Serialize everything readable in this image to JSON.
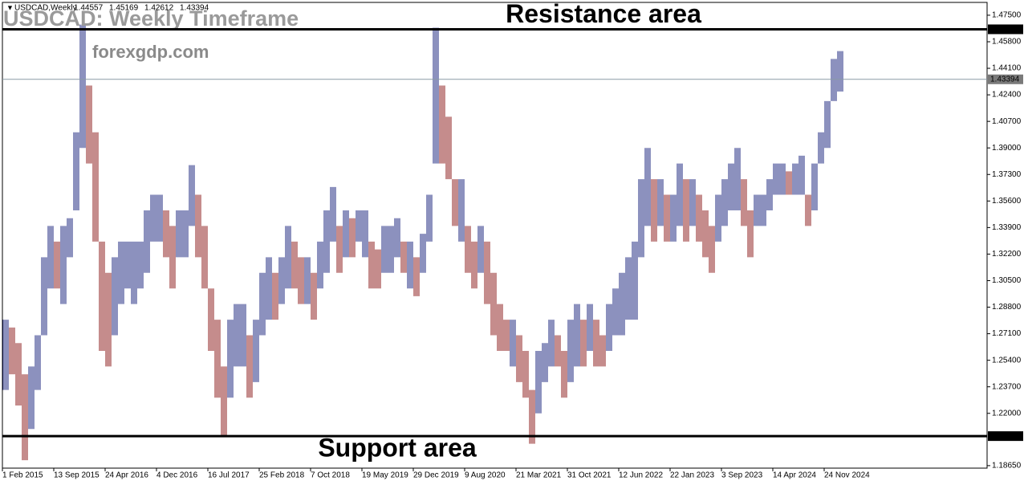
{
  "chart_data": {
    "type": "ohlc",
    "header": "USDCAD,Weekly",
    "header_values": [
      1.44557,
      1.45169,
      1.42612,
      1.43394
    ],
    "title": "USDCAD: Weekly Timeframe",
    "subtitle": "forexgdp.com",
    "up_color": "#1a237e",
    "down_color": "#8b1a1a",
    "categories": [
      "1 Feb 2015",
      null,
      null,
      null,
      null,
      null,
      null,
      null,
      "13 Sep 2015",
      null,
      null,
      null,
      null,
      null,
      null,
      null,
      "24 Apr 2016",
      null,
      null,
      null,
      null,
      null,
      null,
      null,
      "4 Dec 2016",
      null,
      null,
      null,
      null,
      null,
      null,
      null,
      "16 Jul 2017",
      null,
      null,
      null,
      null,
      null,
      null,
      null,
      "25 Feb 2018",
      null,
      null,
      null,
      null,
      null,
      null,
      null,
      "7 Oct 2018",
      null,
      null,
      null,
      null,
      null,
      null,
      null,
      "19 May 2019",
      null,
      null,
      null,
      null,
      null,
      null,
      null,
      "29 Dec 2019",
      null,
      null,
      null,
      null,
      null,
      null,
      null,
      "9 Aug 2020",
      null,
      null,
      null,
      null,
      null,
      null,
      null,
      "21 Mar 2021",
      null,
      null,
      null,
      null,
      null,
      null,
      null,
      "31 Oct 2021",
      null,
      null,
      null,
      null,
      null,
      null,
      null,
      "12 Jun 2022",
      null,
      null,
      null,
      null,
      null,
      null,
      null,
      "22 Jan 2023",
      null,
      null,
      null,
      null,
      null,
      null,
      null,
      "3 Sep 2023",
      null,
      null,
      null,
      null,
      null,
      null,
      null,
      "14 Apr 2024",
      null,
      null,
      null,
      null,
      null,
      null,
      null,
      "24 Nov 2024",
      null,
      null
    ],
    "high": [
      1.28,
      1.275,
      1.265,
      1.245,
      1.25,
      1.27,
      1.32,
      1.34,
      1.33,
      1.34,
      1.345,
      1.4,
      1.469,
      1.43,
      1.4,
      1.33,
      1.31,
      1.32,
      1.33,
      1.33,
      1.33,
      1.33,
      1.35,
      1.36,
      1.36,
      1.35,
      1.34,
      1.35,
      1.35,
      1.379,
      1.36,
      1.34,
      1.3,
      1.28,
      1.25,
      1.28,
      1.29,
      1.29,
      1.27,
      1.28,
      1.31,
      1.32,
      1.31,
      1.32,
      1.34,
      1.33,
      1.32,
      1.32,
      1.31,
      1.33,
      1.35,
      1.365,
      1.34,
      1.35,
      1.345,
      1.35,
      1.35,
      1.33,
      1.325,
      1.34,
      1.34,
      1.345,
      1.33,
      1.33,
      1.32,
      1.335,
      1.36,
      1.467,
      1.43,
      1.41,
      1.37,
      1.37,
      1.34,
      1.33,
      1.34,
      1.33,
      1.31,
      1.29,
      1.28,
      1.28,
      1.27,
      1.26,
      1.235,
      1.26,
      1.265,
      1.28,
      1.27,
      1.26,
      1.28,
      1.29,
      1.28,
      1.29,
      1.28,
      1.27,
      1.29,
      1.3,
      1.31,
      1.32,
      1.33,
      1.37,
      1.39,
      1.37,
      1.37,
      1.36,
      1.36,
      1.38,
      1.37,
      1.37,
      1.36,
      1.35,
      1.34,
      1.36,
      1.37,
      1.38,
      1.39,
      1.37,
      1.35,
      1.36,
      1.36,
      1.37,
      1.38,
      1.38,
      1.375,
      1.38,
      1.385,
      1.36,
      1.38,
      1.4,
      1.42,
      1.447,
      1.452
    ],
    "low": [
      1.235,
      1.245,
      1.225,
      1.19,
      1.21,
      1.235,
      1.27,
      1.3,
      1.3,
      1.29,
      1.32,
      1.35,
      1.39,
      1.38,
      1.33,
      1.26,
      1.25,
      1.27,
      1.29,
      1.3,
      1.29,
      1.3,
      1.31,
      1.33,
      1.33,
      1.32,
      1.3,
      1.32,
      1.32,
      1.34,
      1.32,
      1.3,
      1.26,
      1.23,
      1.206,
      1.23,
      1.25,
      1.25,
      1.23,
      1.24,
      1.27,
      1.28,
      1.28,
      1.29,
      1.3,
      1.3,
      1.29,
      1.29,
      1.28,
      1.3,
      1.31,
      1.33,
      1.31,
      1.32,
      1.32,
      1.33,
      1.32,
      1.3,
      1.3,
      1.31,
      1.31,
      1.32,
      1.31,
      1.3,
      1.295,
      1.31,
      1.33,
      1.38,
      1.38,
      1.37,
      1.34,
      1.33,
      1.31,
      1.3,
      1.31,
      1.29,
      1.27,
      1.26,
      1.26,
      1.25,
      1.24,
      1.23,
      1.2005,
      1.22,
      1.24,
      1.25,
      1.25,
      1.23,
      1.24,
      1.25,
      1.25,
      1.26,
      1.25,
      1.25,
      1.26,
      1.27,
      1.27,
      1.28,
      1.28,
      1.32,
      1.34,
      1.33,
      1.34,
      1.33,
      1.33,
      1.34,
      1.33,
      1.34,
      1.33,
      1.32,
      1.31,
      1.33,
      1.34,
      1.35,
      1.35,
      1.34,
      1.32,
      1.34,
      1.34,
      1.35,
      1.36,
      1.36,
      1.36,
      1.36,
      1.36,
      1.34,
      1.35,
      1.38,
      1.39,
      1.42,
      1.42612
    ],
    "levels": [
      {
        "label": "Resistance area",
        "value": 1.46598
      },
      {
        "label": "Support area",
        "value": 1.20541
      }
    ],
    "price_line": 1.43394,
    "ylim": [
      1.1849,
      1.4832
    ],
    "yticks": [
      {
        "value": 1.475,
        "label": "1.47500"
      },
      {
        "value": 1.458,
        "label": "1.45800"
      },
      {
        "value": 1.441,
        "label": "1.44100"
      },
      {
        "value": 1.424,
        "label": "1.42400"
      },
      {
        "value": 1.407,
        "label": "1.40700"
      },
      {
        "value": 1.39,
        "label": "1.39000"
      },
      {
        "value": 1.373,
        "label": "1.37300"
      },
      {
        "value": 1.356,
        "label": "1.35600"
      },
      {
        "value": 1.339,
        "label": "1.33900"
      },
      {
        "value": 1.322,
        "label": "1.32200"
      },
      {
        "value": 1.305,
        "label": "1.30500"
      },
      {
        "value": 1.288,
        "label": "1.28800"
      },
      {
        "value": 1.271,
        "label": "1.27100"
      },
      {
        "value": 1.254,
        "label": "1.25400"
      },
      {
        "value": 1.237,
        "label": "1.23700"
      },
      {
        "value": 1.22,
        "label": "1.22000"
      },
      {
        "value": 1.1865,
        "label": "1.18650"
      }
    ]
  }
}
